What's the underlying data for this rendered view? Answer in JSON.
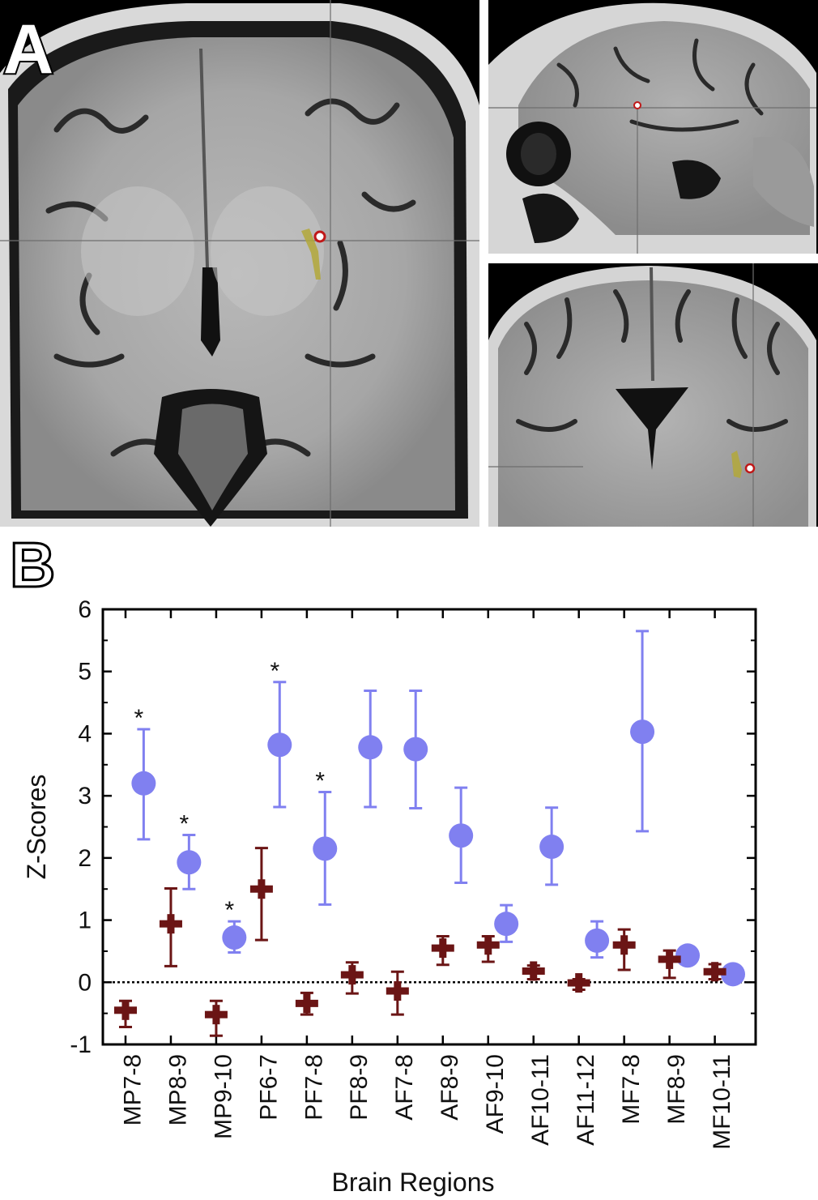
{
  "panel_a": {
    "label": "A"
  },
  "panel_b": {
    "label": "B"
  },
  "chart_data": {
    "type": "scatter",
    "xlabel": "Brain Regions",
    "ylabel": "Z-Scores",
    "ylim": [
      -1,
      6
    ],
    "yticks": [
      "-1",
      "0",
      "1",
      "2",
      "3",
      "4",
      "5",
      "6"
    ],
    "categories": [
      "MP7-8",
      "MP8-9",
      "MP9-10",
      "PF6-7",
      "PF7-8",
      "PF8-9",
      "AF7-8",
      "AF8-9",
      "AF9-10",
      "AF10-11",
      "AF11-12",
      "MF7-8",
      "MF8-9",
      "MF10-11"
    ],
    "reference_line": 0,
    "series": [
      {
        "color": "#8080f0",
        "marker": "circle",
        "x": [
          1.4,
          2.4,
          3.4,
          4.4,
          5.4,
          6.4,
          7.4,
          8.4,
          9.4,
          10.4,
          11.4,
          12.4,
          13.4,
          14.4
        ],
        "values": [
          3.2,
          1.93,
          0.72,
          3.82,
          2.15,
          3.78,
          3.75,
          2.36,
          0.94,
          2.18,
          0.67,
          4.03,
          0.43,
          0.13
        ],
        "err_low": [
          2.3,
          1.5,
          0.48,
          2.82,
          1.25,
          2.82,
          2.8,
          1.6,
          0.65,
          1.57,
          0.4,
          2.43,
          null,
          null
        ],
        "err_high": [
          4.07,
          2.37,
          0.98,
          4.83,
          3.06,
          4.69,
          4.69,
          3.13,
          1.24,
          2.81,
          0.98,
          5.65,
          null,
          null
        ]
      },
      {
        "color": "#6b1515",
        "marker": "cross",
        "x": [
          1.0,
          2.0,
          3.0,
          4.0,
          5.0,
          6.0,
          7.0,
          8.0,
          9.0,
          10.0,
          11.0,
          12.0,
          13.0,
          14.0
        ],
        "values": [
          -0.45,
          0.94,
          -0.52,
          1.5,
          -0.34,
          0.12,
          -0.14,
          0.55,
          0.6,
          0.18,
          -0.01,
          0.6,
          0.37,
          0.17
        ],
        "err_low": [
          -0.72,
          0.26,
          -0.86,
          0.68,
          -0.52,
          -0.18,
          -0.52,
          0.28,
          0.33,
          0.05,
          -0.12,
          0.2,
          0.07,
          0.05
        ],
        "err_high": [
          -0.3,
          1.51,
          -0.3,
          2.16,
          -0.17,
          0.32,
          0.17,
          0.74,
          0.74,
          0.27,
          0.05,
          0.85,
          0.51,
          0.29
        ]
      }
    ],
    "significance": [
      {
        "category": "MP7-8",
        "mark": "*"
      },
      {
        "category": "MP8-9",
        "mark": "*"
      },
      {
        "category": "MP9-10",
        "mark": "*"
      },
      {
        "category": "PF6-7",
        "mark": "*"
      },
      {
        "category": "PF7-8",
        "mark": "*"
      }
    ]
  }
}
